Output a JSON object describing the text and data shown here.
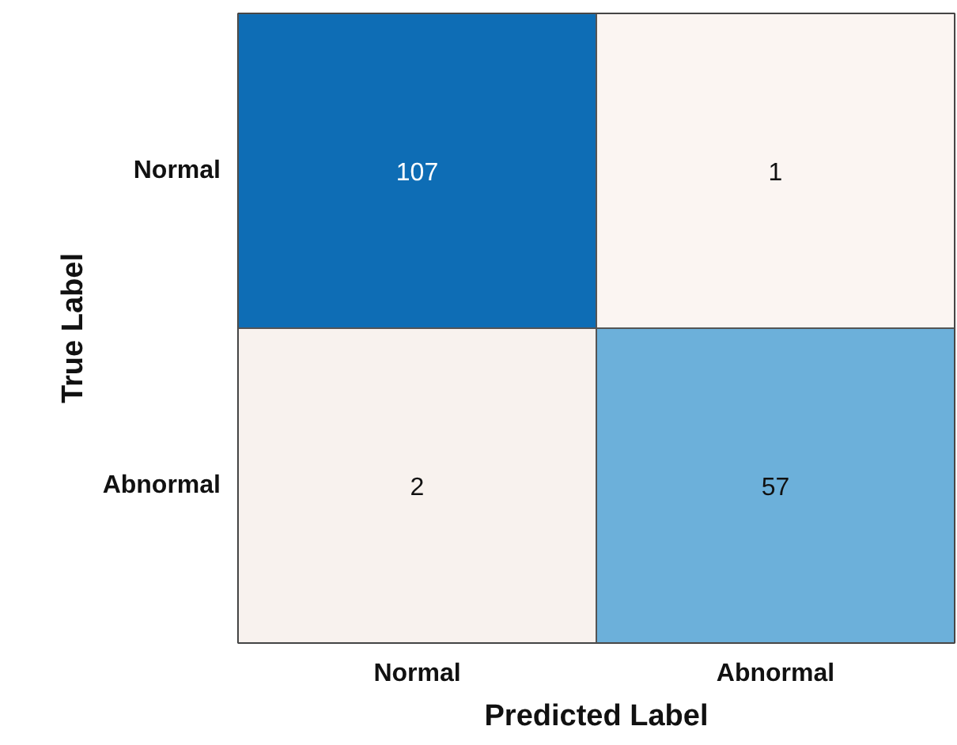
{
  "chart_data": {
    "type": "heatmap",
    "xlabel": "Predicted Label",
    "ylabel": "True Label",
    "categories": [
      "Normal",
      "Abnormal"
    ],
    "y_categories": [
      "Normal",
      "Abnormal"
    ],
    "cells": [
      [
        107,
        1
      ],
      [
        2,
        57
      ]
    ],
    "colors": [
      "#0e6db5",
      "#fbf5f2",
      "#f8f2ee",
      "#6cb0da"
    ],
    "data_labels": true
  }
}
